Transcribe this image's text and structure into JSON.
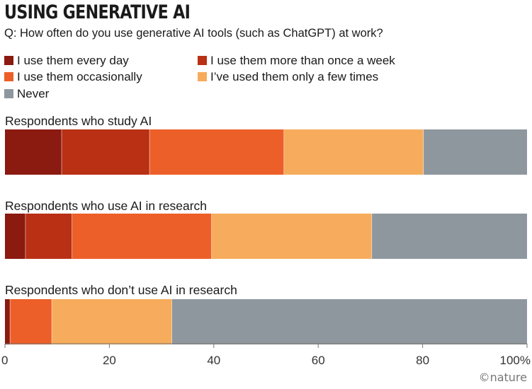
{
  "chart_data": {
    "type": "bar",
    "orientation": "horizontal",
    "stacked": true,
    "title": "USING GENERATIVE AI",
    "subtitle": "Q: How often do you use generative AI tools (such as ChatGPT) at work?",
    "categories": [
      "Respondents who study AI",
      "Respondents who use AI in research",
      "Respondents who don’t use AI in research"
    ],
    "series": [
      {
        "name": "I use them every day",
        "color": "#8b1a10",
        "values": [
          11,
          4,
          1
        ]
      },
      {
        "name": "I use them more than once a week",
        "color": "#b93014",
        "values": [
          17,
          9,
          0
        ]
      },
      {
        "name": "I use them occasionally",
        "color": "#ec5f28",
        "values": [
          26,
          27,
          8
        ]
      },
      {
        "name": "I’ve used them only a few times",
        "color": "#f6ac5c",
        "values": [
          27,
          31,
          23
        ]
      },
      {
        "name": "Never",
        "color": "#8f979e",
        "values": [
          20,
          30,
          68
        ]
      }
    ],
    "xlim": [
      0,
      100
    ],
    "xticks": [
      "0",
      "20",
      "40",
      "60",
      "80",
      "100%"
    ],
    "legend_position": "top",
    "grid": false
  },
  "credit": "©nature"
}
